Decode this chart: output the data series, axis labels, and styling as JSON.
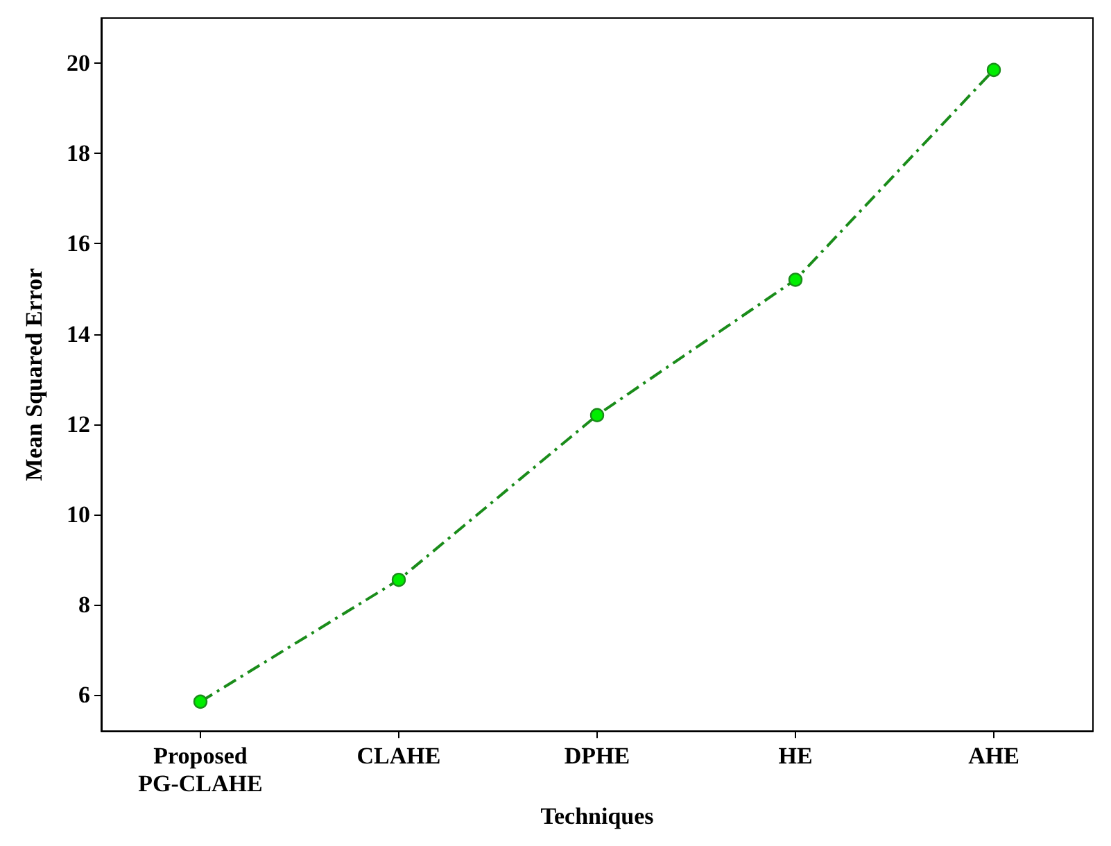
{
  "chart_data": {
    "type": "line",
    "xlabel": "Techniques",
    "ylabel": "Mean Squared Error",
    "categories": [
      "Proposed\nPG-CLAHE",
      "CLAHE",
      "DPHE",
      "HE",
      "AHE"
    ],
    "series": [
      {
        "color": "#1a8c1a",
        "values": [
          5.85,
          8.55,
          12.2,
          15.2,
          19.85
        ]
      }
    ],
    "ylim": [
      5.2,
      21
    ],
    "yticks": [
      6,
      8,
      10,
      12,
      14,
      16,
      18,
      20
    ],
    "grid": false,
    "marker": "circle",
    "line_style": "dashed"
  }
}
